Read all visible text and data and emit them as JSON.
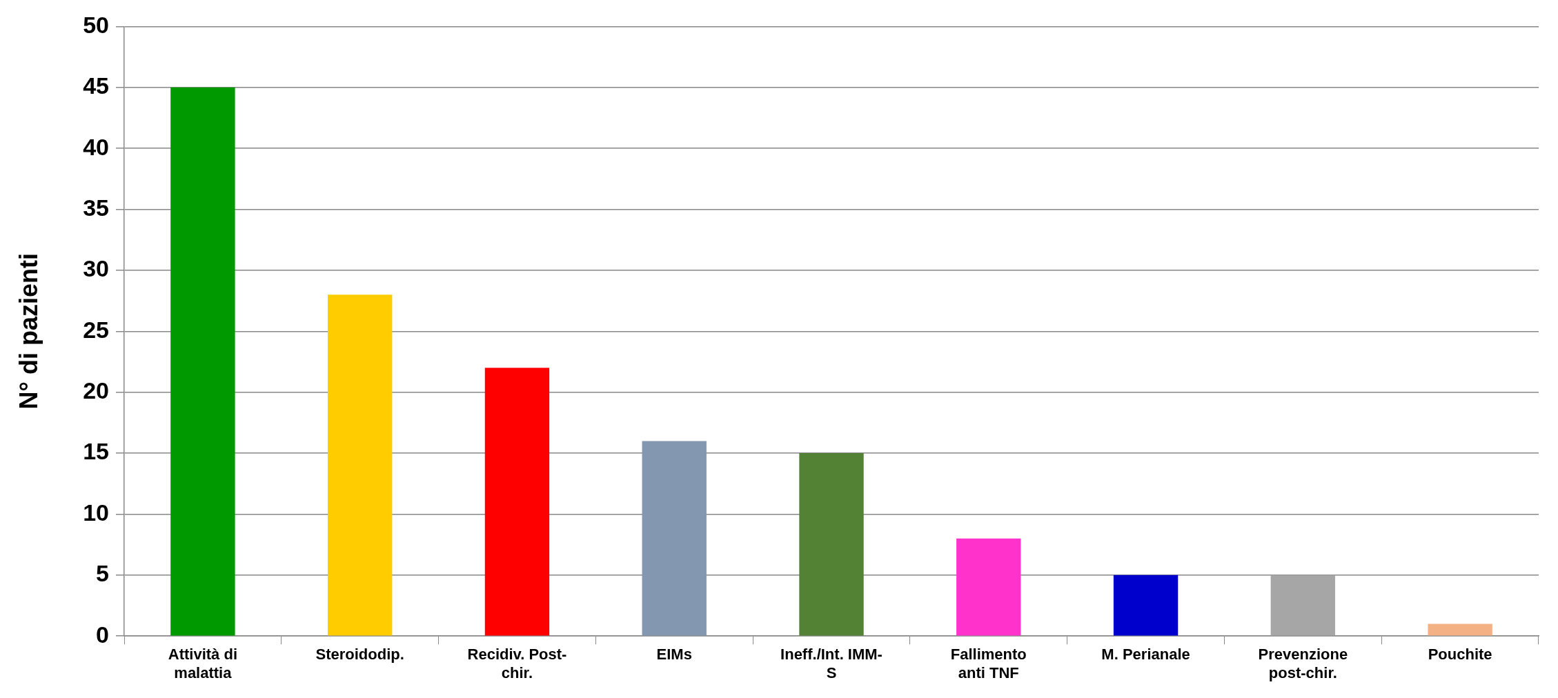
{
  "chart_data": {
    "type": "bar",
    "ylabel": "N° di pazienti",
    "categories": [
      "Attività di malattia",
      "Steroidodip.",
      "Recidiv. Post-chir.",
      "EIMs",
      "Ineff./Int. IMM-S",
      "Fallimento anti TNF",
      "M. Perianale",
      "Prevenzione post-chir.",
      "Pouchite"
    ],
    "values": [
      45,
      28,
      22,
      16,
      15,
      8,
      5,
      5,
      1
    ],
    "colors": [
      "#009900",
      "#ffcc00",
      "#ff0000",
      "#8497b0",
      "#548235",
      "#ff33cc",
      "#0000cc",
      "#a6a6a6",
      "#f4b183"
    ],
    "ylim": [
      0,
      50
    ],
    "yticks": [
      0,
      5,
      10,
      15,
      20,
      25,
      30,
      35,
      40,
      45,
      50
    ],
    "grid": "y",
    "legend": false
  }
}
